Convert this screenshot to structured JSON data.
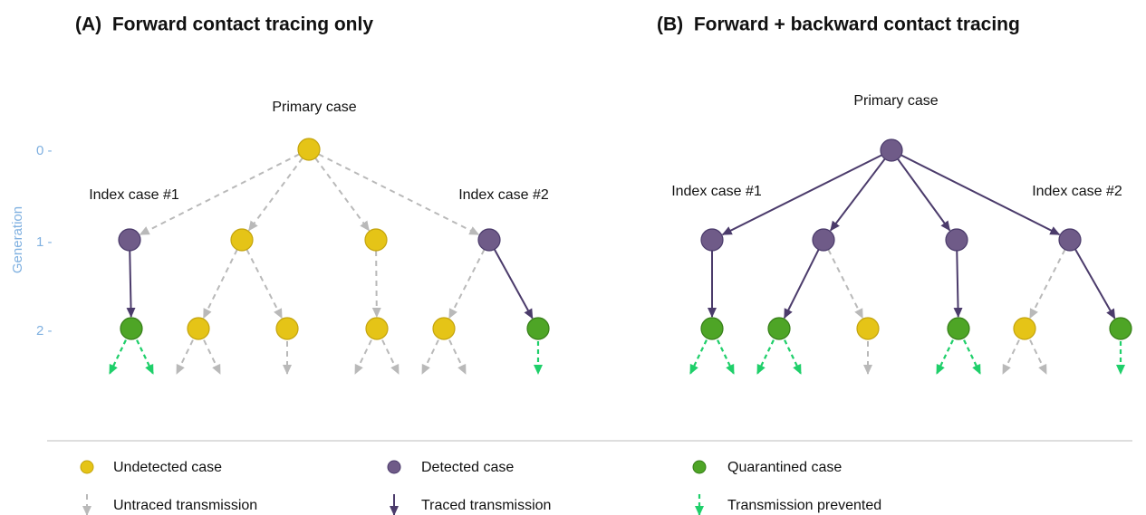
{
  "panels": [
    {
      "title": "(A)  Forward contact tracing only",
      "primary_label": "Primary case",
      "index_labels": [
        "Index case #1",
        "Index case #2"
      ]
    },
    {
      "title": "(B)  Forward + backward contact tracing",
      "primary_label": "Primary case",
      "index_labels": [
        "Index case #1",
        "Index case #2"
      ]
    }
  ],
  "y_axis": {
    "title": "Generation",
    "ticks": [
      "0 -",
      "1 -",
      "2 -"
    ]
  },
  "legend": [
    {
      "label": "Undetected case"
    },
    {
      "label": "Detected case"
    },
    {
      "label": "Quarantined case"
    },
    {
      "label": "Untraced transmission"
    },
    {
      "label": "Traced transmission"
    },
    {
      "label": "Transmission prevented"
    }
  ]
}
